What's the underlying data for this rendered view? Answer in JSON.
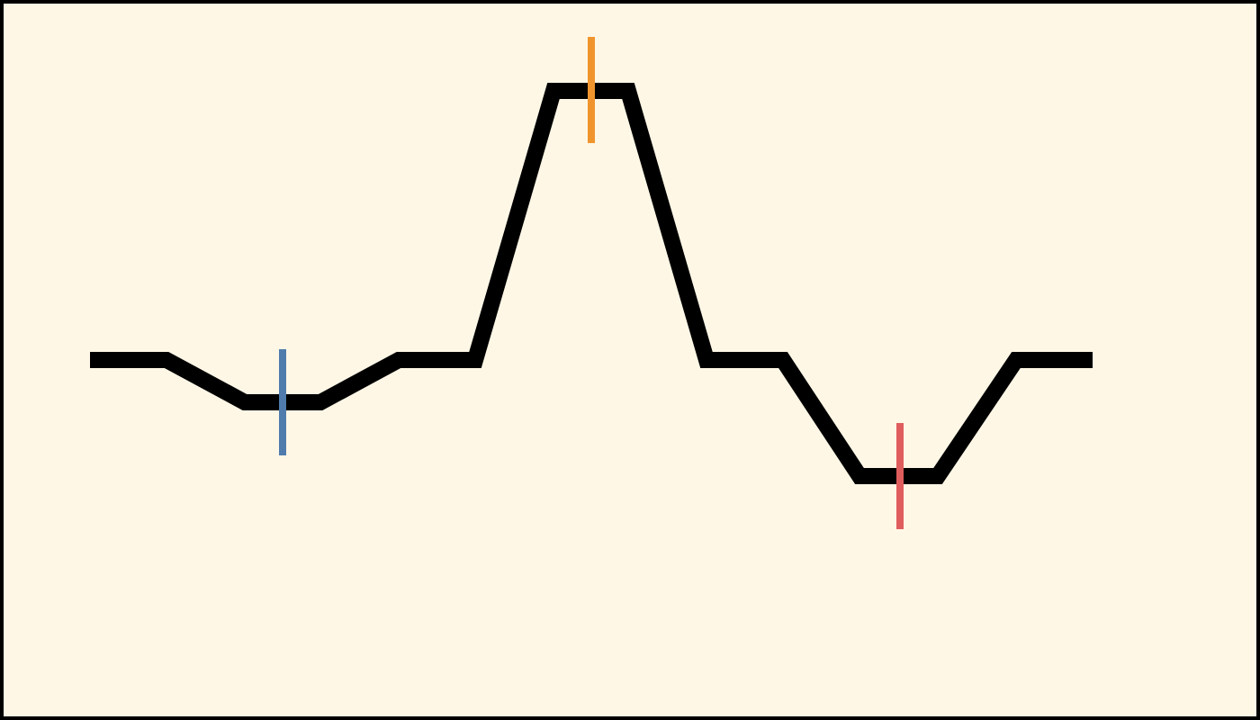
{
  "colors": {
    "background": "#fff7e6",
    "border": "#000000",
    "waveform": "#000000"
  },
  "waveform": {
    "name": "terrain-profile-line"
  },
  "markers": [
    {
      "id": "marker-left",
      "color": "#4f7cad"
    },
    {
      "id": "marker-peak",
      "color": "#f0952e"
    },
    {
      "id": "marker-right",
      "color": "#e05d5d"
    }
  ]
}
